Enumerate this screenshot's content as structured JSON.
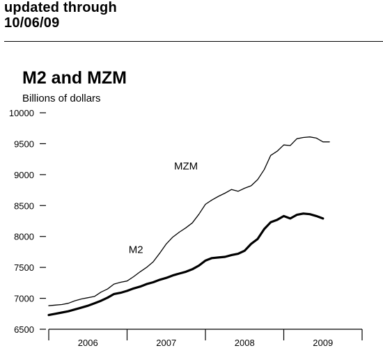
{
  "header": {
    "updated_line1": "updated through",
    "updated_line2": "10/06/09"
  },
  "chart_data": {
    "type": "line",
    "title": "M2 and MZM",
    "ylabel": "Billions of dollars",
    "xlabel": "",
    "ylim": [
      6500,
      10000
    ],
    "yticks": [
      6500,
      7000,
      7500,
      8000,
      8500,
      9000,
      9500,
      10000
    ],
    "xlim": [
      2006.0,
      2010.0
    ],
    "year_labels": [
      "2006",
      "2007",
      "2008",
      "2009"
    ],
    "grid": false,
    "legend": "inline labels",
    "series": [
      {
        "name": "MZM",
        "x": [
          2006.0,
          2006.083,
          2006.167,
          2006.25,
          2006.333,
          2006.417,
          2006.5,
          2006.583,
          2006.667,
          2006.75,
          2006.833,
          2006.917,
          2007.0,
          2007.083,
          2007.167,
          2007.25,
          2007.333,
          2007.417,
          2007.5,
          2007.583,
          2007.667,
          2007.75,
          2007.833,
          2007.917,
          2008.0,
          2008.083,
          2008.167,
          2008.25,
          2008.333,
          2008.417,
          2008.5,
          2008.583,
          2008.667,
          2008.75,
          2008.833,
          2008.917,
          2009.0,
          2009.083,
          2009.167,
          2009.25,
          2009.333,
          2009.417,
          2009.5,
          2009.583
        ],
        "values": [
          6880,
          6890,
          6900,
          6920,
          6960,
          6990,
          7010,
          7030,
          7100,
          7150,
          7230,
          7260,
          7280,
          7350,
          7430,
          7500,
          7590,
          7730,
          7880,
          7990,
          8070,
          8140,
          8220,
          8360,
          8520,
          8590,
          8650,
          8700,
          8760,
          8730,
          8780,
          8820,
          8920,
          9080,
          9310,
          9380,
          9480,
          9470,
          9580,
          9600,
          9610,
          9590,
          9530,
          9530
        ]
      },
      {
        "name": "M2",
        "x": [
          2006.0,
          2006.083,
          2006.167,
          2006.25,
          2006.333,
          2006.417,
          2006.5,
          2006.583,
          2006.667,
          2006.75,
          2006.833,
          2006.917,
          2007.0,
          2007.083,
          2007.167,
          2007.25,
          2007.333,
          2007.417,
          2007.5,
          2007.583,
          2007.667,
          2007.75,
          2007.833,
          2007.917,
          2008.0,
          2008.083,
          2008.167,
          2008.25,
          2008.333,
          2008.417,
          2008.5,
          2008.583,
          2008.667,
          2008.75,
          2008.833,
          2008.917,
          2009.0,
          2009.083,
          2009.167,
          2009.25,
          2009.333,
          2009.417,
          2009.5
        ],
        "values": [
          6730,
          6750,
          6770,
          6790,
          6820,
          6850,
          6880,
          6920,
          6960,
          7010,
          7070,
          7090,
          7120,
          7160,
          7190,
          7230,
          7260,
          7300,
          7330,
          7370,
          7400,
          7430,
          7470,
          7530,
          7610,
          7650,
          7660,
          7670,
          7700,
          7720,
          7770,
          7880,
          7960,
          8120,
          8230,
          8270,
          8330,
          8290,
          8350,
          8370,
          8360,
          8330,
          8290
        ]
      }
    ],
    "annotations": [
      {
        "text": "MZM",
        "x": 2007.6,
        "y": 9080
      },
      {
        "text": "M2",
        "x": 2007.02,
        "y": 7730
      }
    ]
  }
}
